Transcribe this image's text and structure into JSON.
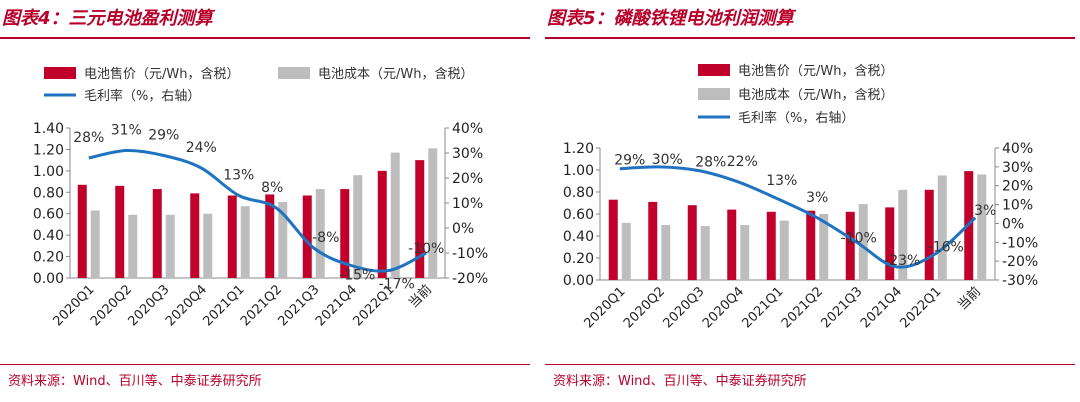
{
  "colors": {
    "price": "#c0002a",
    "cost": "#bdbdbd",
    "margin": "#1f73c0",
    "accent": "#b8002a"
  },
  "panels": [
    {
      "title": "图表4：三元电池盈利测算",
      "source": "资料来源：Wind、百川等、中泰证券研究所",
      "chart_data": {
        "type": "bar",
        "categories": [
          "2020Q1",
          "2020Q2",
          "2020Q3",
          "2020Q4",
          "2021Q1",
          "2021Q2",
          "2021Q3",
          "2021Q4",
          "2022Q1",
          "当前"
        ],
        "series": [
          {
            "name": "电池售价（元/Wh，含税）",
            "type": "bar",
            "axis": "left",
            "values": [
              0.87,
              0.86,
              0.83,
              0.79,
              0.77,
              0.78,
              0.77,
              0.83,
              1.0,
              1.1
            ]
          },
          {
            "name": "电池成本（元/Wh，含税）",
            "type": "bar",
            "axis": "left",
            "values": [
              0.63,
              0.59,
              0.59,
              0.6,
              0.67,
              0.71,
              0.83,
              0.96,
              1.17,
              1.21
            ]
          },
          {
            "name": "毛利率（%，右轴）",
            "type": "line",
            "axis": "right",
            "values": [
              28,
              31,
              29,
              24,
              13,
              8,
              -8,
              -15,
              -17,
              -10
            ],
            "labels": [
              "28%",
              "31%",
              "29%",
              "24%",
              "13%",
              "8%",
              "-8%",
              "-15%",
              "-17%",
              "-10%"
            ]
          }
        ],
        "y_left": {
          "min": 0,
          "max": 1.4,
          "ticks": [
            "0.00",
            "0.20",
            "0.40",
            "0.60",
            "0.80",
            "1.00",
            "1.20",
            "1.40"
          ]
        },
        "y_right": {
          "min": -20,
          "max": 40,
          "ticks": [
            "-20%",
            "-10%",
            "0%",
            "10%",
            "20%",
            "30%",
            "40%"
          ]
        },
        "legend": "top"
      }
    },
    {
      "title": "图表5：磷酸铁锂电池利润测算",
      "source": "资料来源：Wind、百川等、中泰证券研究所",
      "chart_data": {
        "type": "bar",
        "categories": [
          "2020Q1",
          "2020Q2",
          "2020Q3",
          "2020Q4",
          "2021Q1",
          "2021Q2",
          "2021Q3",
          "2021Q4",
          "2022Q1",
          "当前"
        ],
        "series": [
          {
            "name": "电池售价（元/Wh，含税）",
            "type": "bar",
            "axis": "left",
            "values": [
              0.73,
              0.71,
              0.68,
              0.64,
              0.62,
              0.63,
              0.62,
              0.66,
              0.82,
              0.99
            ]
          },
          {
            "name": "电池成本（元/Wh，含税）",
            "type": "bar",
            "axis": "left",
            "values": [
              0.52,
              0.5,
              0.49,
              0.5,
              0.54,
              0.6,
              0.69,
              0.82,
              0.95,
              0.96
            ]
          },
          {
            "name": "毛利率（%，右轴）",
            "type": "line",
            "axis": "right",
            "values": [
              29,
              30,
              28,
              22,
              13,
              3,
              -10,
              -23,
              -16,
              3
            ],
            "labels": [
              "29%",
              "30%",
              "28%",
              "22%",
              "13%",
              "3%",
              "-10%",
              "-23%",
              "-16%",
              "3%"
            ]
          }
        ],
        "y_left": {
          "min": 0,
          "max": 1.2,
          "ticks": [
            "0.00",
            "0.20",
            "0.40",
            "0.60",
            "0.80",
            "1.00",
            "1.20"
          ]
        },
        "y_right": {
          "min": -30,
          "max": 40,
          "ticks": [
            "-30%",
            "-20%",
            "-10%",
            "0%",
            "10%",
            "20%",
            "30%",
            "40%"
          ]
        },
        "legend": "top"
      }
    }
  ]
}
